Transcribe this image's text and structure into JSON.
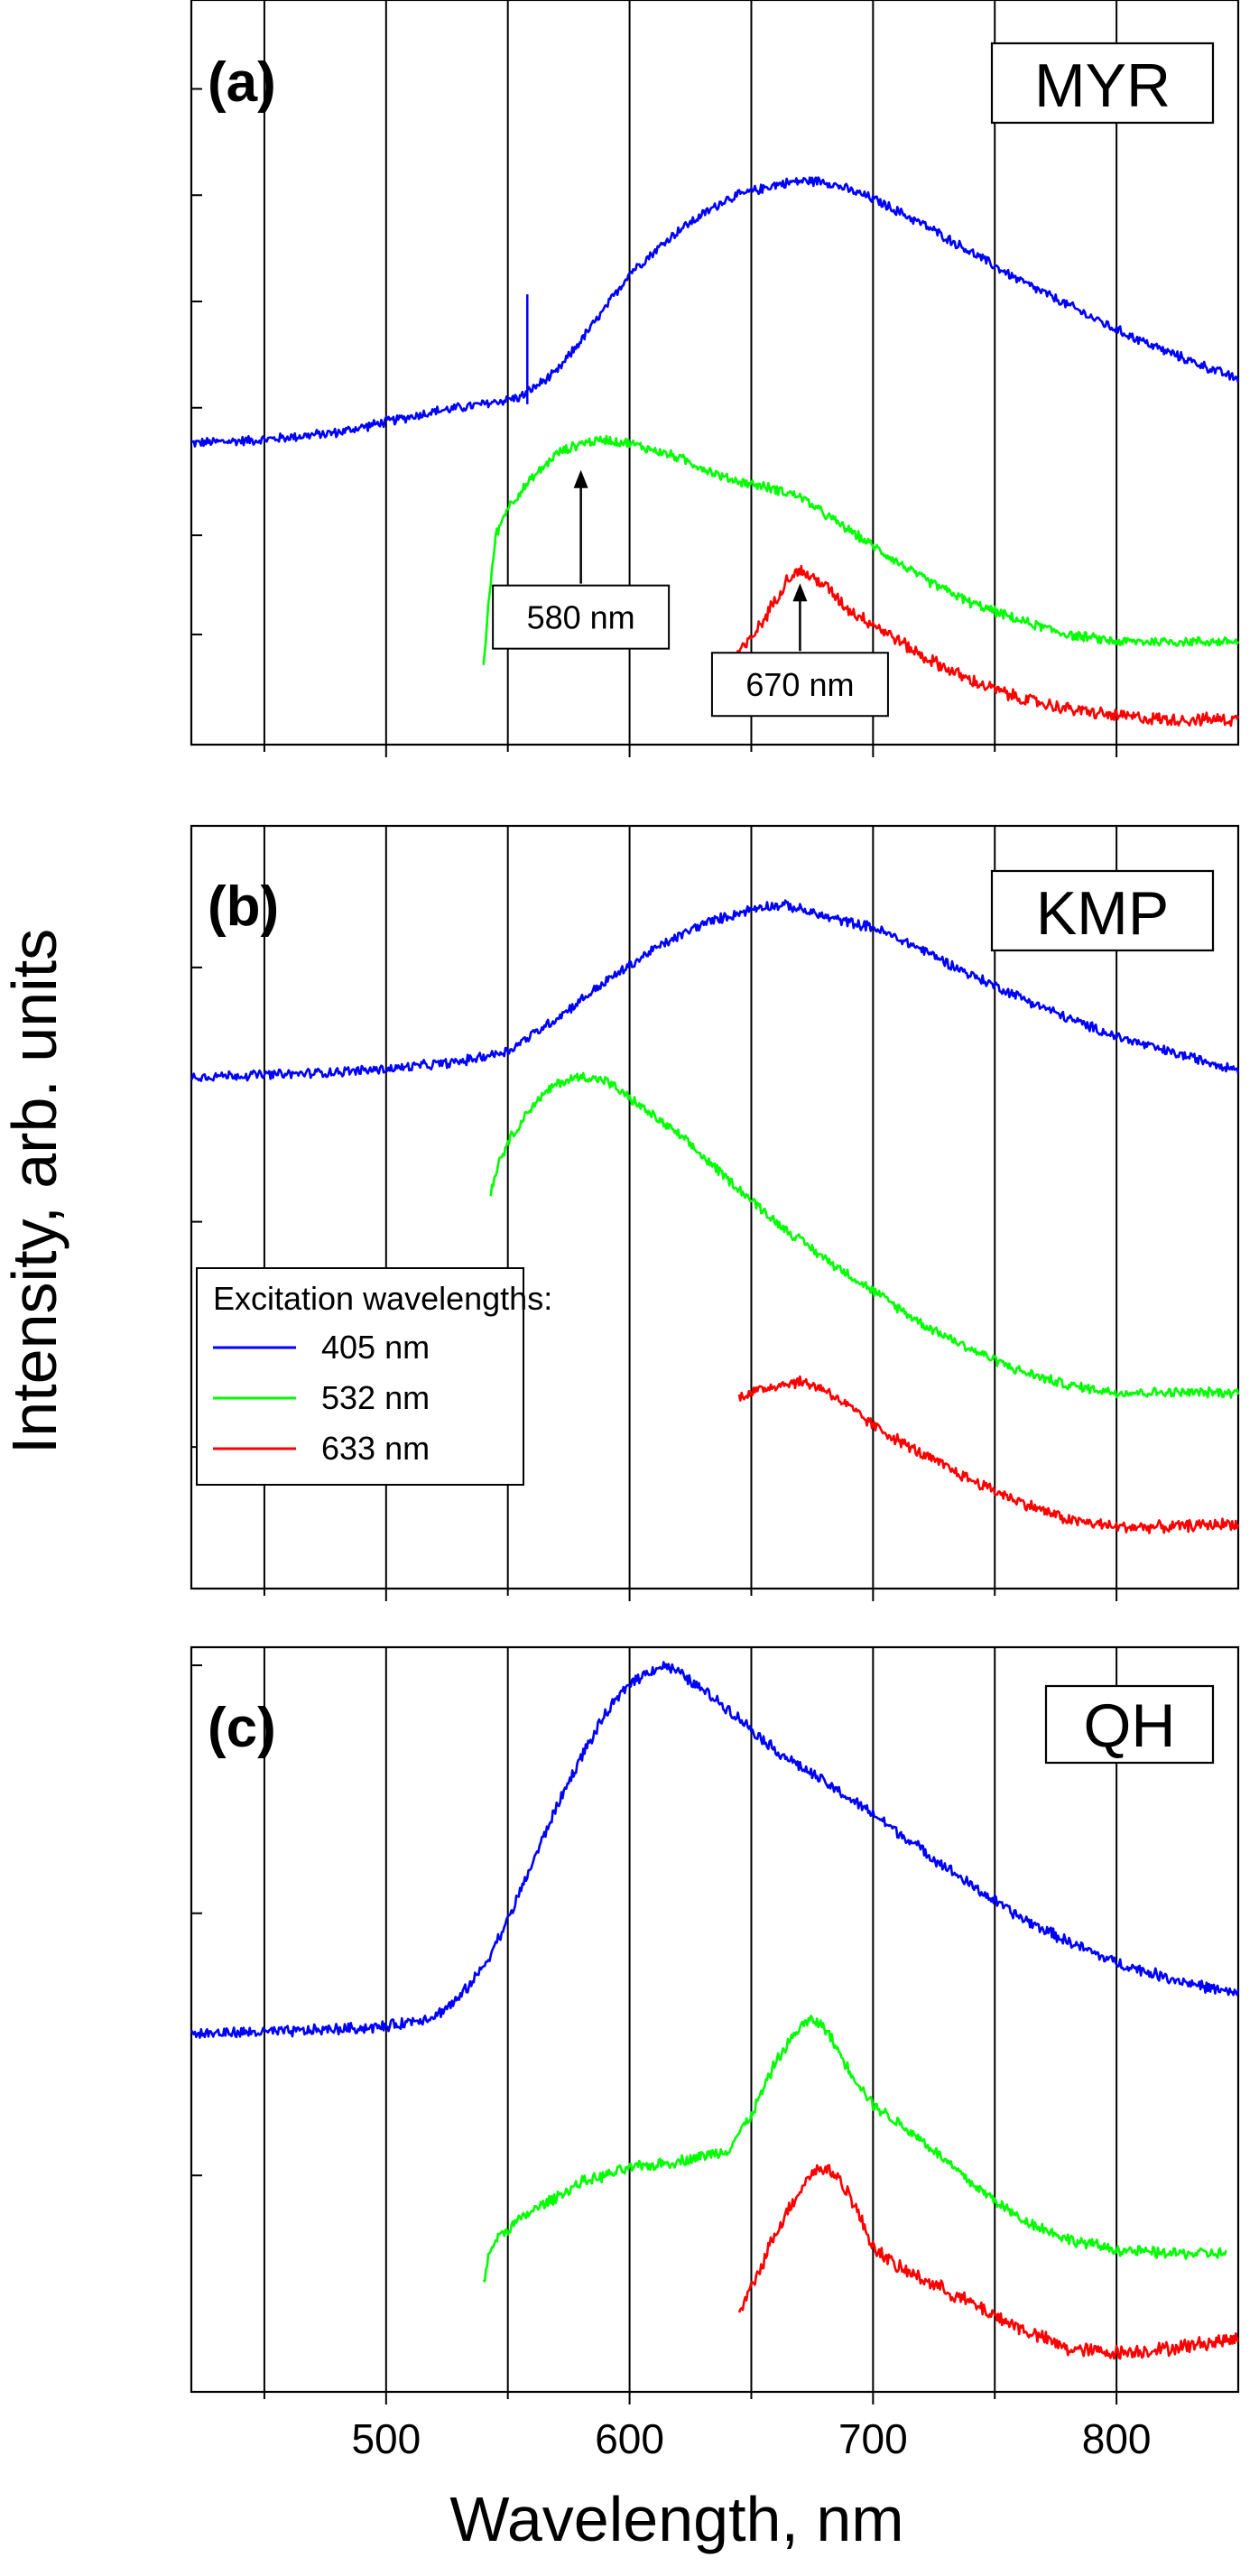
{
  "chart_data": [
    {
      "type": "line",
      "panel_label": "(a)",
      "sample": "MYR",
      "xlim": [
        420,
        850
      ],
      "ylim": [
        0,
        1.0
      ],
      "y_ticks_labeled": false,
      "series": [
        {
          "name": "405 nm",
          "color": "#0000ff",
          "noise": 0.006,
          "x": [
            420,
            450,
            480,
            500,
            520,
            540,
            555,
            570,
            580,
            590,
            600,
            620,
            640,
            660,
            670,
            680,
            700,
            720,
            740,
            760,
            780,
            800,
            820,
            850
          ],
          "y": [
            0.4,
            0.405,
            0.415,
            0.43,
            0.445,
            0.455,
            0.465,
            0.5,
            0.545,
            0.59,
            0.64,
            0.7,
            0.745,
            0.765,
            0.77,
            0.77,
            0.745,
            0.71,
            0.67,
            0.63,
            0.595,
            0.56,
            0.53,
            0.49
          ]
        },
        {
          "name": "532 nm",
          "color": "#00ff00",
          "noise": 0.006,
          "x": [
            540,
            542,
            545,
            550,
            560,
            570,
            580,
            590,
            600,
            620,
            640,
            660,
            670,
            680,
            700,
            720,
            740,
            760,
            780,
            800,
            820,
            850
          ],
          "y": [
            0.085,
            0.17,
            0.27,
            0.31,
            0.35,
            0.385,
            0.4,
            0.405,
            0.4,
            0.38,
            0.35,
            0.335,
            0.325,
            0.3,
            0.255,
            0.21,
            0.175,
            0.15,
            0.13,
            0.12,
            0.12,
            0.12
          ]
        },
        {
          "name": "633 nm",
          "color": "#ff0000",
          "noise": 0.008,
          "x": [
            643,
            648,
            655,
            660,
            665,
            670,
            680,
            690,
            700,
            720,
            740,
            760,
            780,
            800,
            820,
            850
          ],
          "y": [
            0.1,
            0.115,
            0.15,
            0.18,
            0.21,
            0.22,
            0.2,
            0.165,
            0.145,
            0.1,
            0.065,
            0.04,
            0.025,
            0.015,
            0.01,
            0.01
          ]
        }
      ],
      "annotations": [
        {
          "text": "580 nm",
          "x": 580,
          "y_text": 0.11,
          "y_tip": 0.38
        },
        {
          "text": "670 nm",
          "x": 670,
          "y_text": 0.015,
          "y_tip": 0.22
        }
      ]
    },
    {
      "type": "line",
      "panel_label": "(b)",
      "sample": "KMP",
      "xlim": [
        420,
        850
      ],
      "ylim": [
        0,
        1.0
      ],
      "y_ticks_labeled": false,
      "series": [
        {
          "name": "405 nm",
          "color": "#0000ff",
          "noise": 0.006,
          "x": [
            420,
            460,
            500,
            530,
            550,
            570,
            590,
            610,
            630,
            650,
            655,
            665,
            680,
            700,
            720,
            740,
            760,
            780,
            800,
            820,
            850
          ],
          "y": [
            0.68,
            0.683,
            0.69,
            0.7,
            0.715,
            0.76,
            0.81,
            0.855,
            0.89,
            0.91,
            0.915,
            0.915,
            0.9,
            0.885,
            0.855,
            0.82,
            0.79,
            0.76,
            0.735,
            0.715,
            0.69
          ]
        },
        {
          "name": "532 nm",
          "color": "#00ff00",
          "noise": 0.006,
          "x": [
            543,
            546,
            550,
            560,
            570,
            580,
            590,
            600,
            620,
            640,
            660,
            680,
            700,
            720,
            740,
            760,
            780,
            800,
            820,
            850
          ],
          "y": [
            0.52,
            0.56,
            0.59,
            0.64,
            0.67,
            0.68,
            0.675,
            0.65,
            0.6,
            0.54,
            0.48,
            0.43,
            0.385,
            0.34,
            0.305,
            0.275,
            0.255,
            0.245,
            0.245,
            0.245
          ]
        },
        {
          "name": "633 nm",
          "color": "#ff0000",
          "noise": 0.007,
          "x": [
            645,
            650,
            660,
            670,
            680,
            690,
            700,
            720,
            740,
            760,
            780,
            800,
            820,
            850
          ],
          "y": [
            0.24,
            0.245,
            0.255,
            0.26,
            0.25,
            0.225,
            0.2,
            0.16,
            0.125,
            0.095,
            0.07,
            0.06,
            0.06,
            0.065
          ]
        }
      ],
      "legend": {
        "title": "Excitation wavelengths:",
        "entries": [
          "405 nm",
          "532 nm",
          "633 nm"
        ],
        "position": "lower-left"
      }
    },
    {
      "type": "line",
      "panel_label": "(c)",
      "sample": "QH",
      "xlim": [
        420,
        850
      ],
      "ylim": [
        0,
        1.0
      ],
      "y_ticks_labeled": false,
      "xlabel": "Wavelength, nm",
      "x_ticks": [
        500,
        600,
        700,
        800
      ],
      "series": [
        {
          "name": "405 nm",
          "color": "#0000ff",
          "noise": 0.007,
          "x": [
            420,
            460,
            500,
            520,
            530,
            540,
            550,
            560,
            570,
            580,
            590,
            600,
            610,
            615,
            620,
            640,
            660,
            680,
            700,
            720,
            740,
            760,
            780,
            800,
            820,
            850
          ],
          "y": [
            0.48,
            0.483,
            0.49,
            0.505,
            0.53,
            0.575,
            0.64,
            0.72,
            0.8,
            0.87,
            0.93,
            0.975,
            0.995,
            1.0,
            0.99,
            0.94,
            0.88,
            0.835,
            0.79,
            0.74,
            0.69,
            0.645,
            0.61,
            0.58,
            0.56,
            0.535
          ]
        },
        {
          "name": "532 nm",
          "color": "#00ff00",
          "noise": 0.007,
          "x": [
            540,
            542,
            545,
            550,
            560,
            580,
            600,
            620,
            640,
            650,
            660,
            670,
            675,
            680,
            690,
            700,
            720,
            740,
            760,
            780,
            800,
            820,
            845
          ],
          "y": [
            0.13,
            0.165,
            0.19,
            0.205,
            0.23,
            0.27,
            0.29,
            0.3,
            0.315,
            0.365,
            0.44,
            0.49,
            0.5,
            0.49,
            0.43,
            0.38,
            0.33,
            0.27,
            0.22,
            0.19,
            0.175,
            0.17,
            0.17
          ]
        },
        {
          "name": "633 nm",
          "color": "#ff0000",
          "noise": 0.009,
          "x": [
            645,
            650,
            660,
            670,
            675,
            680,
            685,
            690,
            700,
            710,
            720,
            740,
            760,
            780,
            800,
            820,
            850
          ],
          "y": [
            0.085,
            0.12,
            0.2,
            0.26,
            0.285,
            0.29,
            0.28,
            0.255,
            0.18,
            0.15,
            0.135,
            0.1,
            0.065,
            0.035,
            0.03,
            0.035,
            0.05
          ]
        }
      ]
    }
  ],
  "shared": {
    "ylabel": "Intensity, arb. units",
    "xlabel": "Wavelength, nm",
    "x_tick_labels": [
      "500",
      "600",
      "700",
      "800"
    ],
    "grid_x": [
      450,
      500,
      550,
      600,
      650,
      700,
      750,
      800
    ]
  }
}
